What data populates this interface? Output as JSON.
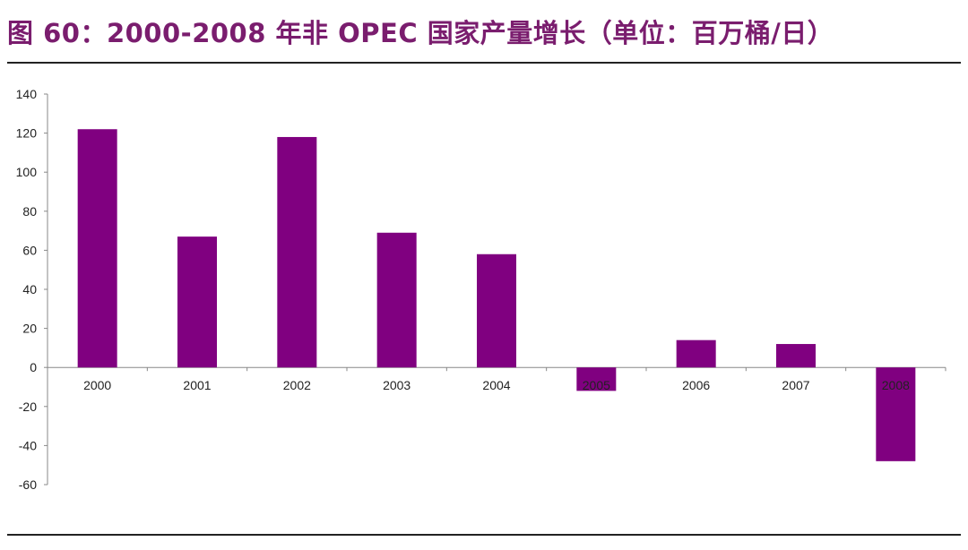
{
  "figure": {
    "title": "图 60：2000-2008 年非 OPEC 国家产量增长（单位：百万桶/日）"
  },
  "colors": {
    "title": "#7a1d6e",
    "bar": "#800080",
    "axis": "#888888"
  },
  "chart_data": {
    "type": "bar",
    "title": "",
    "xlabel": "",
    "ylabel": "",
    "categories": [
      "2000",
      "2001",
      "2002",
      "2003",
      "2004",
      "2005",
      "2006",
      "2007",
      "2008"
    ],
    "values": [
      122,
      67,
      118,
      69,
      58,
      -12,
      14,
      12,
      -48
    ],
    "ylim": [
      -60,
      140
    ],
    "yticks": [
      -60,
      -40,
      -20,
      0,
      20,
      40,
      60,
      80,
      100,
      120,
      140
    ],
    "grid": false,
    "legend": "none"
  }
}
